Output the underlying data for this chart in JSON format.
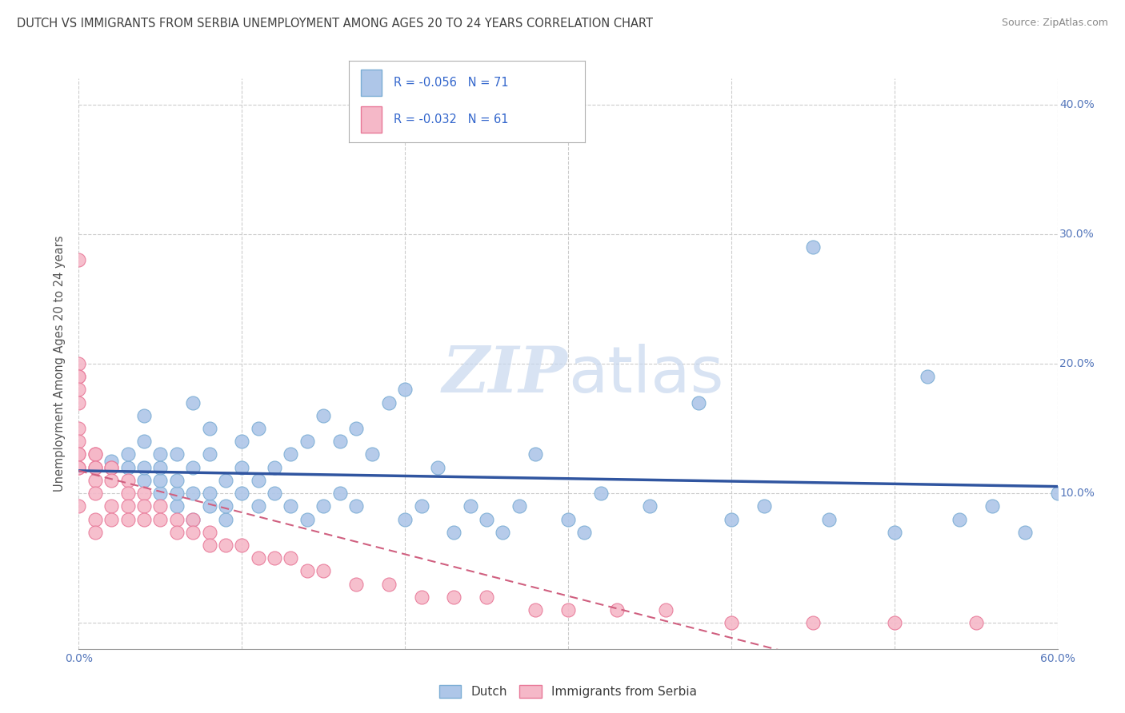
{
  "title": "DUTCH VS IMMIGRANTS FROM SERBIA UNEMPLOYMENT AMONG AGES 20 TO 24 YEARS CORRELATION CHART",
  "source": "Source: ZipAtlas.com",
  "ylabel": "Unemployment Among Ages 20 to 24 years",
  "x_min": 0.0,
  "x_max": 0.6,
  "y_min": -0.02,
  "y_max": 0.42,
  "x_ticks": [
    0.0,
    0.1,
    0.2,
    0.3,
    0.4,
    0.5,
    0.6
  ],
  "x_tick_labels": [
    "0.0%",
    "",
    "",
    "",
    "",
    "",
    "60.0%"
  ],
  "y_ticks": [
    0.0,
    0.1,
    0.2,
    0.3,
    0.4
  ],
  "y_tick_labels_right": [
    "",
    "10.0%",
    "20.0%",
    "30.0%",
    "40.0%"
  ],
  "dutch_fill": "#aec6e8",
  "dutch_edge": "#7badd4",
  "serbia_fill": "#f5b8c8",
  "serbia_edge": "#e87898",
  "trend_dutch_color": "#3055a0",
  "trend_serbia_color": "#d06080",
  "watermark_color": "#c8d8ee",
  "background_color": "#ffffff",
  "grid_color": "#cccccc",
  "title_color": "#404040",
  "axis_label_color": "#555555",
  "tick_color": "#5577bb",
  "R_N_color": "#3366cc",
  "dutch_R": -0.056,
  "dutch_N": 71,
  "serbia_R": -0.032,
  "serbia_N": 61,
  "dutch_scatter_x": [
    0.02,
    0.03,
    0.03,
    0.04,
    0.04,
    0.04,
    0.04,
    0.05,
    0.05,
    0.05,
    0.05,
    0.06,
    0.06,
    0.06,
    0.06,
    0.07,
    0.07,
    0.07,
    0.07,
    0.08,
    0.08,
    0.08,
    0.08,
    0.09,
    0.09,
    0.09,
    0.1,
    0.1,
    0.1,
    0.11,
    0.11,
    0.11,
    0.12,
    0.12,
    0.13,
    0.13,
    0.14,
    0.14,
    0.15,
    0.15,
    0.16,
    0.16,
    0.17,
    0.17,
    0.18,
    0.19,
    0.2,
    0.2,
    0.21,
    0.22,
    0.23,
    0.24,
    0.25,
    0.26,
    0.27,
    0.28,
    0.3,
    0.31,
    0.32,
    0.35,
    0.38,
    0.4,
    0.42,
    0.45,
    0.46,
    0.5,
    0.52,
    0.54,
    0.56,
    0.58,
    0.6
  ],
  "dutch_scatter_y": [
    0.125,
    0.12,
    0.13,
    0.11,
    0.12,
    0.14,
    0.16,
    0.1,
    0.11,
    0.12,
    0.13,
    0.09,
    0.1,
    0.11,
    0.13,
    0.08,
    0.1,
    0.12,
    0.17,
    0.09,
    0.1,
    0.13,
    0.15,
    0.08,
    0.09,
    0.11,
    0.1,
    0.12,
    0.14,
    0.09,
    0.11,
    0.15,
    0.1,
    0.12,
    0.09,
    0.13,
    0.08,
    0.14,
    0.09,
    0.16,
    0.1,
    0.14,
    0.09,
    0.15,
    0.13,
    0.17,
    0.08,
    0.18,
    0.09,
    0.12,
    0.07,
    0.09,
    0.08,
    0.07,
    0.09,
    0.13,
    0.08,
    0.07,
    0.1,
    0.09,
    0.17,
    0.08,
    0.09,
    0.29,
    0.08,
    0.07,
    0.19,
    0.08,
    0.09,
    0.07,
    0.1
  ],
  "serbia_scatter_x": [
    0.0,
    0.0,
    0.0,
    0.0,
    0.0,
    0.0,
    0.0,
    0.0,
    0.0,
    0.0,
    0.0,
    0.0,
    0.0,
    0.01,
    0.01,
    0.01,
    0.01,
    0.01,
    0.01,
    0.01,
    0.01,
    0.02,
    0.02,
    0.02,
    0.02,
    0.02,
    0.03,
    0.03,
    0.03,
    0.03,
    0.04,
    0.04,
    0.04,
    0.05,
    0.05,
    0.06,
    0.06,
    0.07,
    0.07,
    0.08,
    0.08,
    0.09,
    0.1,
    0.11,
    0.12,
    0.13,
    0.14,
    0.15,
    0.17,
    0.19,
    0.21,
    0.23,
    0.25,
    0.28,
    0.3,
    0.33,
    0.36,
    0.4,
    0.45,
    0.5,
    0.55
  ],
  "serbia_scatter_y": [
    0.28,
    0.2,
    0.19,
    0.19,
    0.18,
    0.17,
    0.15,
    0.14,
    0.13,
    0.13,
    0.12,
    0.12,
    0.09,
    0.13,
    0.13,
    0.12,
    0.12,
    0.11,
    0.1,
    0.08,
    0.07,
    0.12,
    0.12,
    0.11,
    0.09,
    0.08,
    0.11,
    0.1,
    0.09,
    0.08,
    0.1,
    0.09,
    0.08,
    0.09,
    0.08,
    0.08,
    0.07,
    0.08,
    0.07,
    0.07,
    0.06,
    0.06,
    0.06,
    0.05,
    0.05,
    0.05,
    0.04,
    0.04,
    0.03,
    0.03,
    0.02,
    0.02,
    0.02,
    0.01,
    0.01,
    0.01,
    0.01,
    0.0,
    0.0,
    0.0,
    0.0
  ]
}
